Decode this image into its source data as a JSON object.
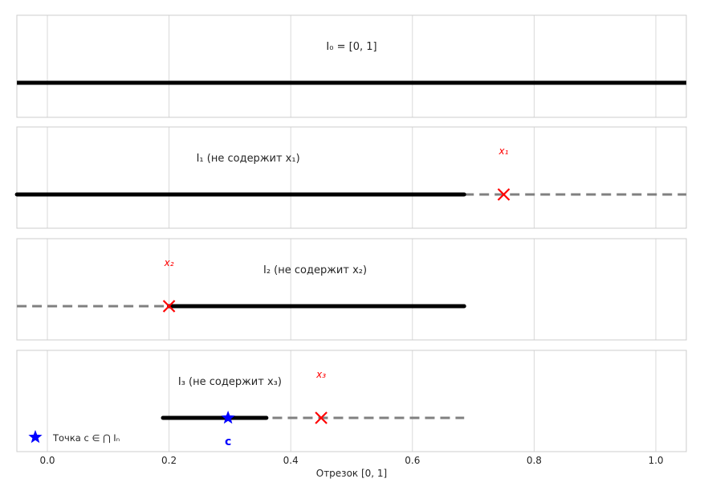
{
  "chart_data": {
    "type": "line",
    "title": "",
    "description": "Nested intervals construction: four stacked panels sharing x-axis",
    "xlabel": "Отрезок [0, 1]",
    "ylabel": "",
    "xlim": [
      -0.05,
      1.05
    ],
    "xticks": [
      0.0,
      0.2,
      0.4,
      0.6,
      0.8,
      1.0
    ],
    "xtick_labels": [
      "0.0",
      "0.2",
      "0.4",
      "0.6",
      "0.8",
      "1.0"
    ],
    "grid": true,
    "legend": {
      "position": "lower left",
      "entries": [
        {
          "marker": "star",
          "color": "#0000ff",
          "label": "Точка c ∈ ⋂ Iₙ"
        }
      ]
    },
    "panels": [
      {
        "title": "I₀ = [0, 1]",
        "title_x": 0.5,
        "solid": [
          -0.05,
          1.05
        ],
        "dashed": [],
        "excluded_point": null
      },
      {
        "title": "I₁ (не содержит x₁)",
        "title_x": 0.33,
        "solid": [
          -0.05,
          0.685
        ],
        "dashed": [
          [
            0.685,
            1.05
          ]
        ],
        "excluded_point": {
          "label": "x₁",
          "x": 0.75
        }
      },
      {
        "title": "I₂ (не содержит x₂)",
        "title_x": 0.44,
        "solid": [
          0.2,
          0.685
        ],
        "dashed": [
          [
            -0.05,
            0.2
          ]
        ],
        "excluded_point": {
          "label": "x₂",
          "x": 0.2
        }
      },
      {
        "title": "I₃ (не содержит x₃)",
        "title_x": 0.3,
        "solid": [
          0.19,
          0.36
        ],
        "dashed": [
          [
            0.37,
            0.685
          ]
        ],
        "excluded_point": {
          "label": "x₃",
          "x": 0.45
        },
        "point_c": {
          "label": "c",
          "x": 0.297
        }
      }
    ],
    "colors": {
      "solid": "#000000",
      "dashed": "#808080",
      "excluded": "#ff0000",
      "point_c": "#0000ff",
      "grid": "#d9d9d9",
      "frame": "#cccccc",
      "text": "#262626"
    }
  }
}
